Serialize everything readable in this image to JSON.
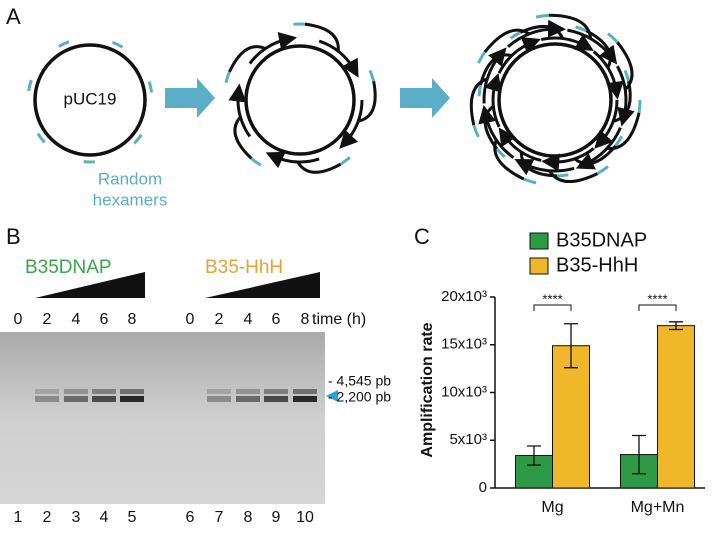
{
  "panel_a": {
    "label": "A",
    "plasmid": "pUC19",
    "primer_label": [
      "Random",
      "hexamers"
    ]
  },
  "panel_b": {
    "label": "B",
    "groups": [
      {
        "name": "B35DNAP",
        "color": "#3aa64a",
        "times": [
          0,
          2,
          4,
          6,
          8
        ]
      },
      {
        "name": "B35-HhH",
        "color": "#e6a232",
        "times": [
          0,
          2,
          4,
          6,
          8
        ]
      }
    ],
    "time_label": "time (h)",
    "markers": [
      "- 4,545 pb",
      "- 2,200 pb"
    ],
    "lanes": [
      1,
      2,
      3,
      4,
      5,
      6,
      7,
      8,
      9,
      10
    ]
  },
  "panel_c": {
    "label": "C"
  },
  "chart_data": {
    "type": "bar",
    "y_label": "Amplification rate",
    "categories": [
      "Mg",
      "Mg+Mn"
    ],
    "series": [
      {
        "name": "B35DNAP",
        "color": "#2f9a46",
        "values": [
          3400,
          3500
        ],
        "errors": [
          1000,
          2000
        ]
      },
      {
        "name": "B35-HhH",
        "color": "#f0b72a",
        "values": [
          14900,
          17000
        ],
        "errors": [
          2300,
          400
        ]
      }
    ],
    "ylim": [
      0,
      20000
    ],
    "yticks": [
      0,
      {
        "value": 5000,
        "label": "5x10³"
      },
      {
        "value": 10000,
        "label": "10x10³"
      },
      {
        "value": 15000,
        "label": "15x10³"
      },
      {
        "value": 20000,
        "label": "20x10³"
      }
    ],
    "annotations": [
      "****",
      "****"
    ]
  }
}
